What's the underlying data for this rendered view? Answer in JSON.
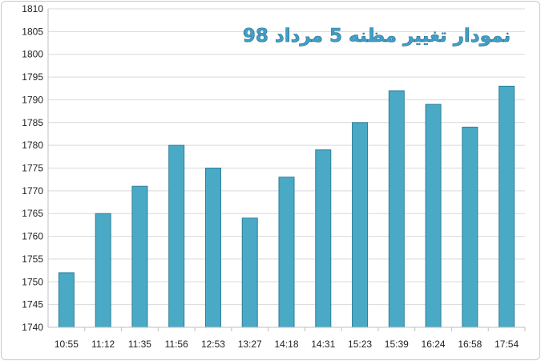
{
  "colors": {
    "bar": "#4aaac6",
    "bar_edge": "#2f7f99",
    "grid": "#d9d9d9",
    "axis": "#bfbfbf",
    "title": "#3f9fc7"
  },
  "chart_data": {
    "type": "bar",
    "title": "نمودار تغییر مظنه 5 مرداد 98",
    "xlabel": "",
    "ylabel": "",
    "categories": [
      "10:55",
      "11:12",
      "11:35",
      "11:56",
      "12:53",
      "13:27",
      "14:18",
      "14:31",
      "15:23",
      "15:39",
      "16:24",
      "16:58",
      "17:54"
    ],
    "values": [
      1752,
      1765,
      1771,
      1780,
      1775,
      1764,
      1773,
      1779,
      1785,
      1792,
      1789,
      1784,
      1793
    ],
    "ylim": [
      1740,
      1810
    ],
    "yticks": [
      1740,
      1745,
      1750,
      1755,
      1760,
      1765,
      1770,
      1775,
      1780,
      1785,
      1790,
      1795,
      1800,
      1805,
      1810
    ],
    "grid": true,
    "legend": "none"
  }
}
